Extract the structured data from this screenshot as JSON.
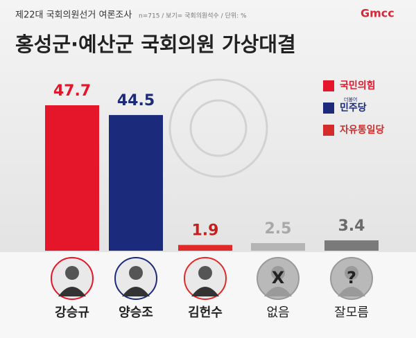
{
  "chart_data": {
    "type": "bar",
    "kicker": "제22대 국회의원선거 여론조사",
    "note": "n=715 / 보기= 국회의원석수 / 단위: %",
    "title": "홍성군·예산군 국회의원 가상대결",
    "logo": "Gmcc",
    "categories": [
      "강승규",
      "양승조",
      "김헌수",
      "없음",
      "잘모름"
    ],
    "values": [
      47.7,
      44.5,
      1.9,
      2.5,
      3.4
    ],
    "colors": [
      "#e5162a",
      "#1b2a7b",
      "#e02a2a",
      "#b5b5b5",
      "#7a7a7a"
    ],
    "label_colors": [
      "#e5162a",
      "#1b2a7b",
      "#c81e1e",
      "#a8a8a8",
      "#6a6a6a"
    ],
    "legend": [
      {
        "name": "국민의힘",
        "color": "#e5162a"
      },
      {
        "name": "민주당",
        "color": "#1b2a7b",
        "sub": "더불어"
      },
      {
        "name": "자유통일당",
        "color": "#d42b2b"
      }
    ],
    "avatar_symbols": [
      "X",
      "?"
    ]
  }
}
